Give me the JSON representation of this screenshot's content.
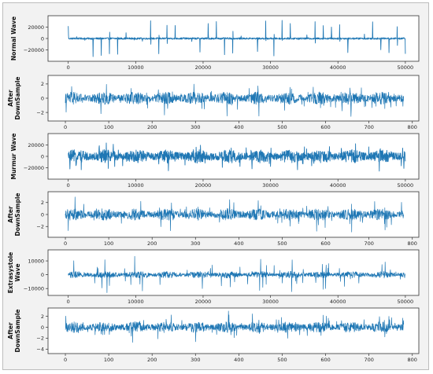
{
  "colors": {
    "line": "#1f77b4",
    "axes": "#333333",
    "background": "#ffffff",
    "figure_bg": "#f2f2f2"
  },
  "chart_data": [
    {
      "type": "line",
      "ylabel": "Normal Wave",
      "xlim": [
        -3000,
        52000
      ],
      "ylim": [
        -40000,
        40000
      ],
      "x_ticks": [
        0,
        10000,
        20000,
        30000,
        40000,
        50000
      ],
      "y_ticks": [
        -20000,
        0,
        20000
      ],
      "signal": {
        "x_start": 0,
        "x_end": 50000,
        "peak_amplitude": 32000,
        "baseline_noise": 1500,
        "description_type": "periodic spikes",
        "spike_count": 41
      },
      "grid": false,
      "legend": "none"
    },
    {
      "type": "line",
      "ylabel": "After DownSample",
      "xlim": [
        -40,
        815
      ],
      "ylim": [
        -3.2,
        3.2
      ],
      "x_ticks": [
        0,
        100,
        200,
        300,
        400,
        500,
        600,
        700,
        800
      ],
      "y_ticks": [
        -2,
        0,
        2
      ],
      "signal": {
        "x_start": 0,
        "x_end": 780,
        "peak_amplitude": 2.7,
        "baseline_noise": 0.9
      },
      "grid": false,
      "legend": "none"
    },
    {
      "type": "line",
      "ylabel": "Murmur Wave",
      "xlim": [
        -3000,
        52000
      ],
      "ylim": [
        -40000,
        40000
      ],
      "x_ticks": [
        0,
        10000,
        20000,
        30000,
        40000,
        50000
      ],
      "y_ticks": [
        -20000,
        0,
        20000
      ],
      "signal": {
        "x_start": 0,
        "x_end": 50000,
        "peak_amplitude": 33000,
        "baseline_noise": 12000
      },
      "grid": false,
      "legend": "none"
    },
    {
      "type": "line",
      "ylabel": "After DownSample",
      "xlim": [
        -40,
        815
      ],
      "ylim": [
        -3.8,
        3.8
      ],
      "x_ticks": [
        0,
        100,
        200,
        300,
        400,
        500,
        600,
        700,
        800
      ],
      "y_ticks": [
        -2,
        0,
        2
      ],
      "signal": {
        "x_start": 0,
        "x_end": 780,
        "peak_amplitude": 3.2,
        "baseline_noise": 1.0
      },
      "grid": false,
      "legend": "none"
    },
    {
      "type": "line",
      "ylabel": "Extrasystole Wave",
      "xlim": [
        -3000,
        52000
      ],
      "ylim": [
        -15000,
        18000
      ],
      "x_ticks": [
        0,
        10000,
        20000,
        30000,
        40000,
        50000
      ],
      "y_ticks": [
        -10000,
        0,
        10000
      ],
      "signal": {
        "x_start": 0,
        "x_end": 50000,
        "peak_amplitude": 14000,
        "baseline_noise": 2500
      },
      "grid": false,
      "legend": "none"
    },
    {
      "type": "line",
      "ylabel": "After DownSample",
      "xlim": [
        -40,
        815
      ],
      "ylim": [
        -4.8,
        3.5
      ],
      "x_ticks": [
        0,
        100,
        200,
        300,
        400,
        500,
        600,
        700,
        800
      ],
      "y_ticks": [
        -4,
        -2,
        0,
        2
      ],
      "signal": {
        "x_start": 0,
        "x_end": 780,
        "peak_amplitude": 3.0,
        "baseline_noise": 1.0
      },
      "grid": false,
      "legend": "none"
    }
  ]
}
